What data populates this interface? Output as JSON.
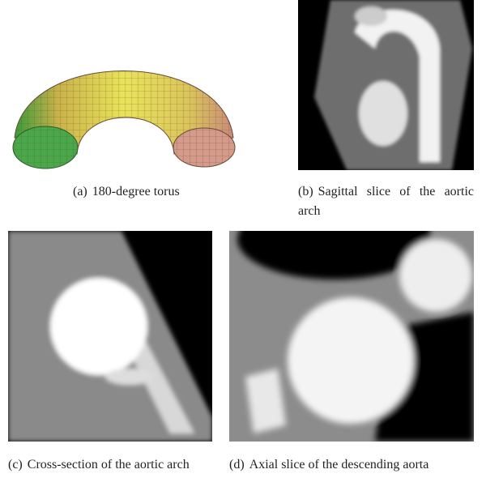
{
  "figure": {
    "panels": [
      {
        "label": "(a)",
        "caption": "180-degree torus"
      },
      {
        "label": "(b)",
        "caption": "Sagittal slice of the aortic arch"
      },
      {
        "label": "(c)",
        "caption": "Cross-section of the aortic arch"
      },
      {
        "label": "(d)",
        "caption": "Axial slice of the descending aorta"
      }
    ]
  }
}
